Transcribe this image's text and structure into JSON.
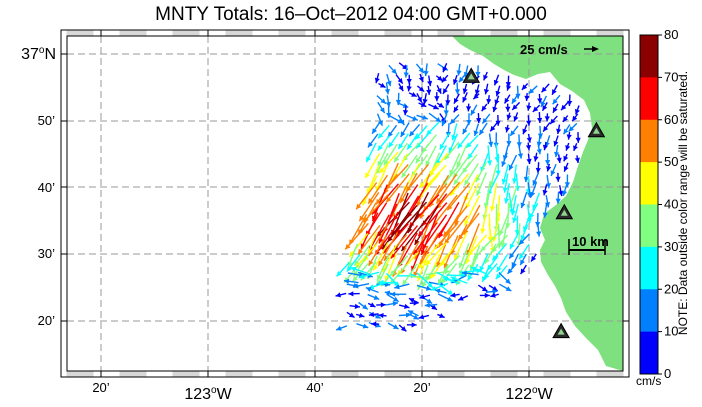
{
  "title": "MNTY Totals: 16–Oct–2012 04:00 GMT+0.000",
  "map": {
    "lat_labels": [
      {
        "text": "37",
        "deg": true,
        "suffix": "N"
      },
      {
        "text": "50’"
      },
      {
        "text": "40’"
      },
      {
        "text": "30’"
      },
      {
        "text": "20’"
      }
    ],
    "lon_labels": [
      {
        "text": "20’"
      },
      {
        "text": "123",
        "deg": true,
        "suffix": "W"
      },
      {
        "text": "40’"
      },
      {
        "text": "20’"
      },
      {
        "text": "122",
        "deg": true,
        "suffix": "W"
      }
    ],
    "reference_vector_label": "25 cm/s",
    "scale_bar_label": "10 km",
    "land_color": "#7ee07e",
    "grid": true,
    "stations": [
      {
        "lat": 36.944,
        "lon": -122.18
      },
      {
        "lat": 36.808,
        "lon": -121.79
      },
      {
        "lat": 36.603,
        "lon": -121.89
      },
      {
        "lat": 36.306,
        "lon": -121.9
      }
    ]
  },
  "colorbar": {
    "ticks": [
      "80",
      "70",
      "60",
      "50",
      "40",
      "30",
      "20",
      "10",
      "0"
    ],
    "colors": [
      "#8b0000",
      "#ff0000",
      "#ff8000",
      "#ffff00",
      "#80ff80",
      "#00ffff",
      "#0080ff",
      "#0000ff"
    ],
    "units": "cm/s",
    "note": "NOTE: Data outside color range will be saturated."
  }
}
